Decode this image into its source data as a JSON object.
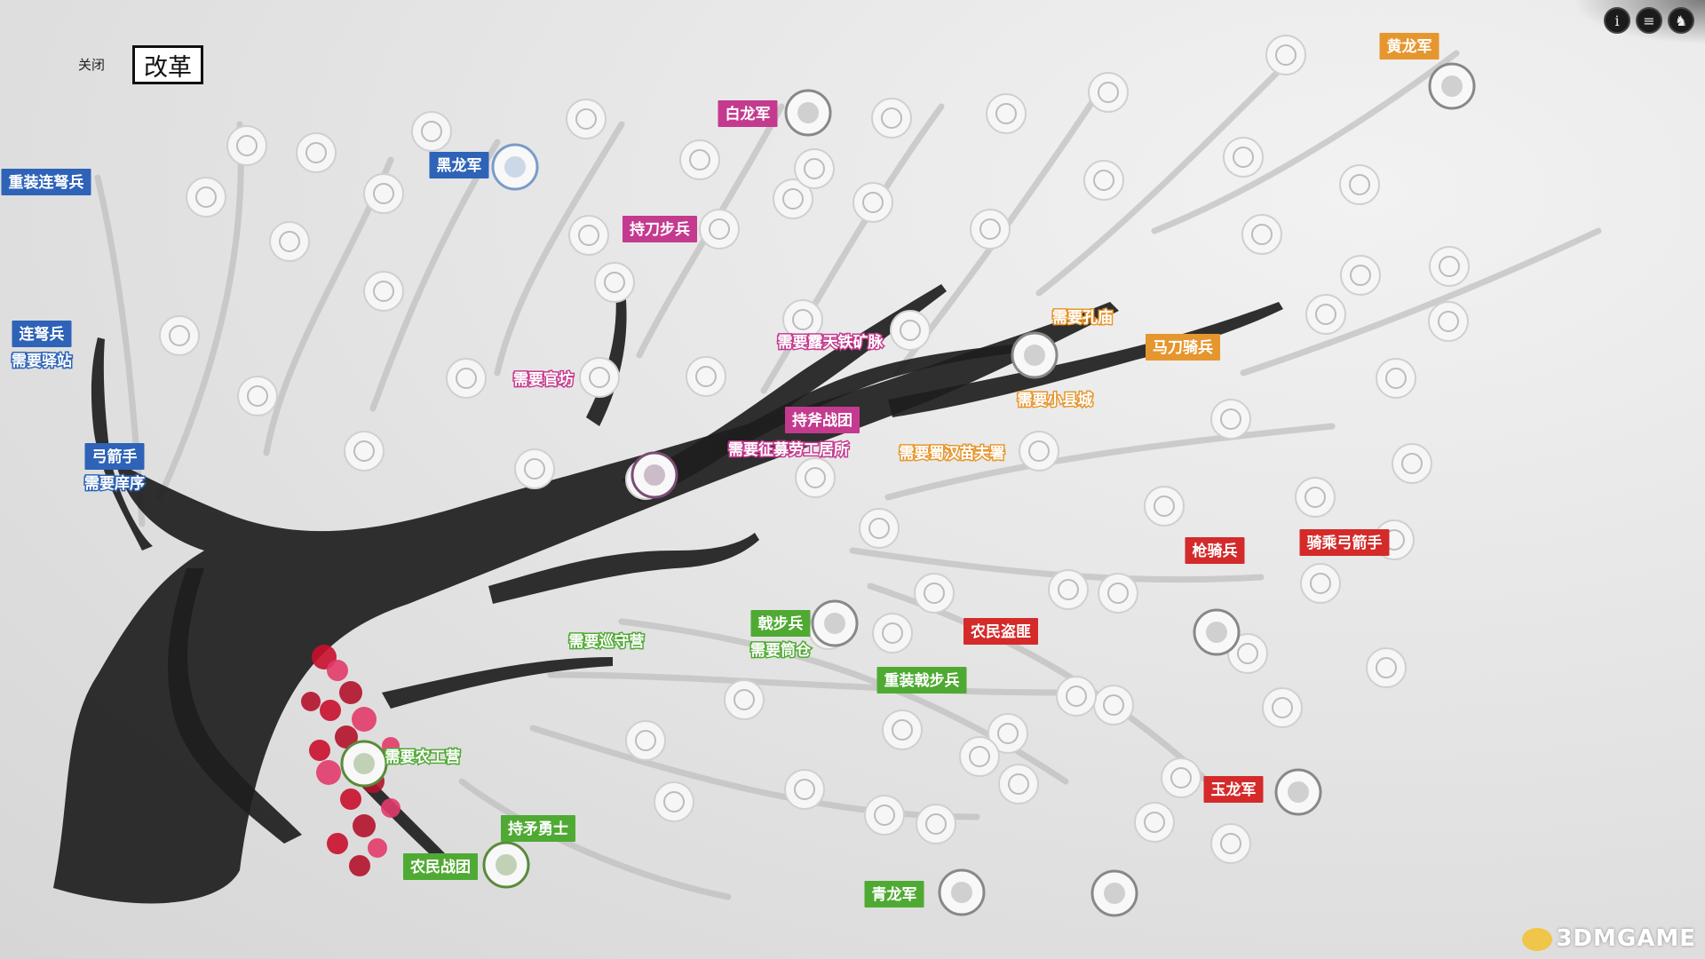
{
  "header": {
    "close_label": "关闭",
    "title": "改革"
  },
  "top_icons": [
    {
      "name": "info-icon",
      "glyph": "i"
    },
    {
      "name": "menu-icon",
      "glyph": "≡"
    },
    {
      "name": "horse-icon",
      "glyph": "♞"
    }
  ],
  "watermark": "3DMGAME",
  "colors": {
    "blue": "#2e63b8",
    "magenta": "#c43a8e",
    "orange": "#e6962e",
    "red": "#d42a2a",
    "green": "#4faa33",
    "trunk": "#1e1e1e"
  },
  "units": [
    {
      "id": "zhongzhuang-liannu",
      "lines": [
        "重装连弩兵"
      ],
      "color": "blue"
    },
    {
      "id": "liannu",
      "lines": [
        "连弩兵",
        "需要驿站"
      ],
      "color": "blue"
    },
    {
      "id": "gongjian",
      "lines": [
        "弓箭手",
        "需要庠序"
      ],
      "color": "blue"
    },
    {
      "id": "heilongjun",
      "lines": [
        "黑龙军"
      ],
      "color": "blue"
    },
    {
      "id": "bailongjun",
      "lines": [
        "白龙军"
      ],
      "color": "magenta"
    },
    {
      "id": "chidao",
      "lines": [
        "持刀步兵"
      ],
      "color": "magenta"
    },
    {
      "id": "guanfang",
      "lines": [
        "需要官坊"
      ],
      "color": "magenta"
    },
    {
      "id": "lutian",
      "lines": [
        "需要露天铁矿脉"
      ],
      "color": "magenta"
    },
    {
      "id": "chifu",
      "lines": [
        "持斧战团"
      ],
      "color": "magenta"
    },
    {
      "id": "zhengmu",
      "lines": [
        "需要征募劳工居所"
      ],
      "color": "magenta"
    },
    {
      "id": "huanglongjun",
      "lines": [
        "黄龙军"
      ],
      "color": "orange"
    },
    {
      "id": "kongmiao",
      "lines": [
        "需要孔庙"
      ],
      "color": "orange"
    },
    {
      "id": "madao",
      "lines": [
        "马刀骑兵"
      ],
      "color": "orange"
    },
    {
      "id": "xiaoxian",
      "lines": [
        "需要小县城"
      ],
      "color": "orange"
    },
    {
      "id": "shuhan",
      "lines": [
        "需要蜀汉苗夫署"
      ],
      "color": "orange"
    },
    {
      "id": "qiangqi",
      "lines": [
        "枪骑兵"
      ],
      "color": "red"
    },
    {
      "id": "qicheng",
      "lines": [
        "骑乘弓箭手"
      ],
      "color": "red"
    },
    {
      "id": "nongmin-daofei",
      "lines": [
        "农民盗匪"
      ],
      "color": "red"
    },
    {
      "id": "yulongjun",
      "lines": [
        "玉龙军"
      ],
      "color": "red"
    },
    {
      "id": "xunshou",
      "lines": [
        "需要巡守营"
      ],
      "color": "green"
    },
    {
      "id": "jibu",
      "lines": [
        "戟步兵",
        "需要筒仓"
      ],
      "color": "green"
    },
    {
      "id": "zhongzhuang-jibu",
      "lines": [
        "重装戟步兵"
      ],
      "color": "green"
    },
    {
      "id": "nonggong",
      "lines": [
        "需要农工营"
      ],
      "color": "green"
    },
    {
      "id": "chimao",
      "lines": [
        "持矛勇士"
      ],
      "color": "green"
    },
    {
      "id": "nongmin-zhantuan",
      "lines": [
        "农民战团"
      ],
      "color": "green"
    },
    {
      "id": "qinglongjun",
      "lines": [
        "青龙军"
      ],
      "color": "green"
    }
  ]
}
